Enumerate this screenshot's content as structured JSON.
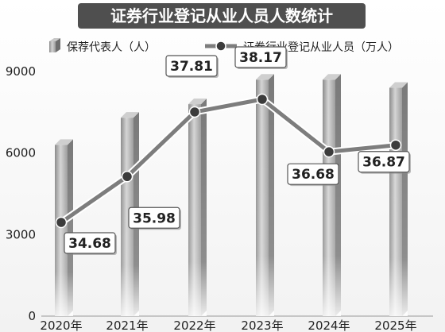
{
  "chart_data": {
    "type": "bar",
    "title": "证券行业登记从业人员人数统计",
    "categories": [
      "2020年",
      "2021年",
      "2022年",
      "2023年",
      "2024年",
      "2025年"
    ],
    "ylim": [
      0,
      9000
    ],
    "yticks": [
      0,
      3000,
      6000,
      9000
    ],
    "legend_position": "top",
    "series": [
      {
        "name": "保荐代表人（人）",
        "type": "bar",
        "axis": "left",
        "values": [
          6300,
          7300,
          7800,
          8700,
          8700,
          8400
        ]
      },
      {
        "name": "证券行业登记从业人员（万人）",
        "type": "line",
        "axis": "right",
        "values": [
          34.68,
          35.98,
          37.81,
          38.17,
          36.68,
          36.87
        ],
        "labels": [
          "34.68",
          "35.98",
          "37.81",
          "38.17",
          "36.68",
          "36.87"
        ]
      }
    ],
    "colors": {
      "title_bg": "#4f4f4f",
      "bar": "#9a9a9a",
      "line": "#7d7d7d",
      "marker": "#3c3c3c"
    }
  }
}
